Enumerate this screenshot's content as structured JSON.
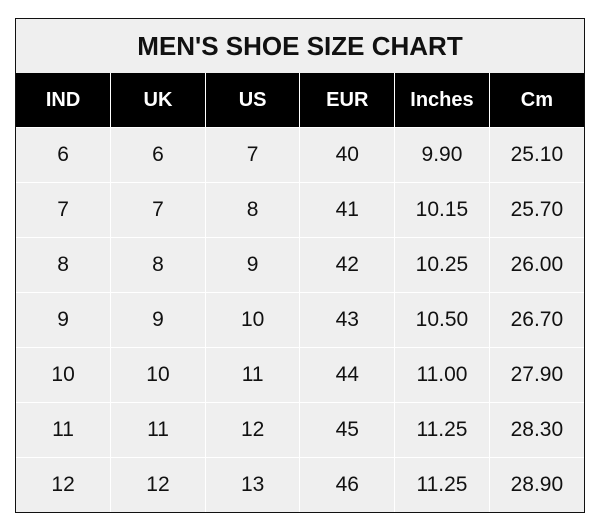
{
  "title": "MEN'S SHOE SIZE CHART",
  "headers": [
    "IND",
    "UK",
    "US",
    "EUR",
    "Inches",
    "Cm"
  ],
  "rows": [
    [
      "6",
      "6",
      "7",
      "40",
      "9.90",
      "25.10"
    ],
    [
      "7",
      "7",
      "8",
      "41",
      "10.15",
      "25.70"
    ],
    [
      "8",
      "8",
      "9",
      "42",
      "10.25",
      "26.00"
    ],
    [
      "9",
      "9",
      "10",
      "43",
      "10.50",
      "26.70"
    ],
    [
      "10",
      "10",
      "11",
      "44",
      "11.00",
      "27.90"
    ],
    [
      "11",
      "11",
      "12",
      "45",
      "11.25",
      "28.30"
    ],
    [
      "12",
      "12",
      "13",
      "46",
      "11.25",
      "28.90"
    ]
  ],
  "colors": {
    "header_bg": "#000000",
    "header_text": "#ffffff",
    "cell_bg": "#efefef",
    "grid": "#ffffff"
  }
}
